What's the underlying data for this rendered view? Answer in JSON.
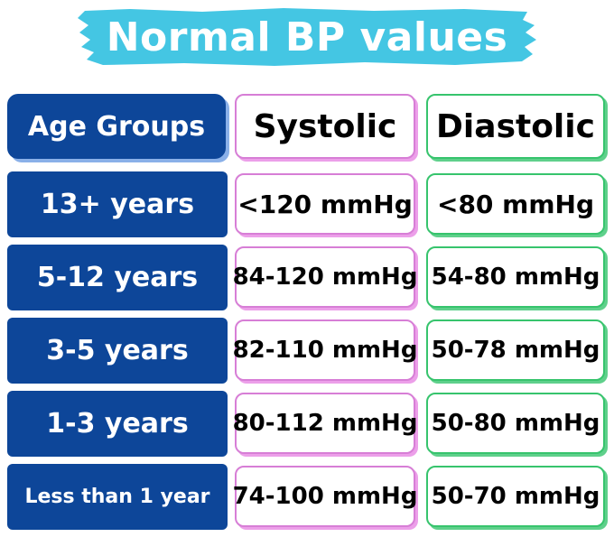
{
  "title": "Normal BP values",
  "header": {
    "age": "Age Groups",
    "systolic": "Systolic",
    "diastolic": "Diastolic"
  },
  "rows": [
    {
      "age": "13+ years",
      "systolic": "<120 mmHg",
      "diastolic": "<80 mmHg"
    },
    {
      "age": "5-12 years",
      "systolic": "84-120 mmHg",
      "diastolic": "54-80 mmHg"
    },
    {
      "age": "3-5 years",
      "systolic": "82-110 mmHg",
      "diastolic": "50-78 mmHg"
    },
    {
      "age": "1-3 years",
      "systolic": "80-112 mmHg",
      "diastolic": "50-80 mmHg"
    },
    {
      "age": "Less than 1 year",
      "systolic": "74-100 mmHg",
      "diastolic": "50-70 mmHg"
    }
  ],
  "colors": {
    "title_brush": "#44c6e3",
    "age_column": "#0d4699",
    "systolic_border": "#d77ed6",
    "diastolic_border": "#37c46d"
  }
}
